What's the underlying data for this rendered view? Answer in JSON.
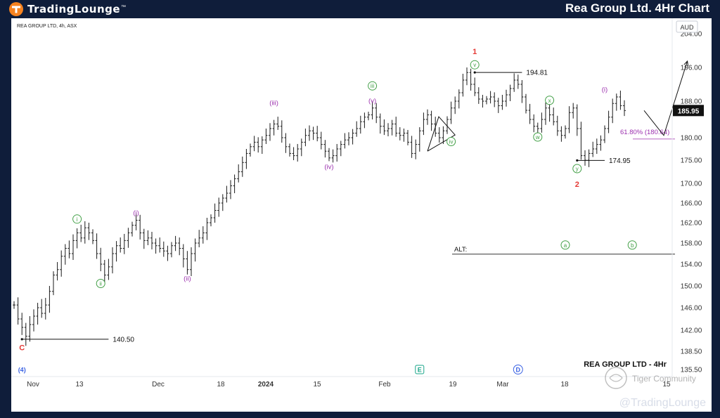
{
  "header": {
    "logo_text": "TradingLounge",
    "title": "Rea Group Ltd. 4Hr Chart"
  },
  "footer": {
    "brand": "@TradingLounge"
  },
  "watermarks": {
    "tiger": "Tiger Community"
  },
  "colors": {
    "background": "#0f1d3a",
    "panel": "#ffffff",
    "candles": "#1a1a1a",
    "minor_label": "#9b2fae",
    "minute_label": "#43a047",
    "primary_label": "#e53935",
    "intermediate_label": "#3a62e3",
    "logo_accent": "#f5821f"
  },
  "chart_data": {
    "type": "line",
    "symbol_label": "REA GROUP LTD, 4h, ASX",
    "currency": "AUD",
    "last_price": "185.95",
    "chart_title": "REA GROUP LTD - 4Hr",
    "y_ticks": [
      "204.00",
      "196.00",
      "188.00",
      "180.00",
      "175.00",
      "170.00",
      "166.00",
      "162.00",
      "158.00",
      "154.00",
      "150.00",
      "146.00",
      "142.00",
      "138.50",
      "135.50"
    ],
    "x_ticks": [
      "Nov",
      "13",
      "Dec",
      "18",
      "2024",
      "15",
      "Feb",
      "19",
      "Mar",
      "18",
      "15"
    ],
    "series": [
      {
        "values": [
          146.5,
          144.0,
          142.5,
          141.0,
          143.0,
          144.5,
          146.0,
          145.0,
          146.5,
          149.0,
          152.0,
          153.0,
          155.5,
          157.0,
          156.0,
          158.5,
          160.0,
          159.0,
          161.0,
          160.0,
          158.5,
          156.0,
          154.0,
          152.0,
          153.5,
          156.0,
          157.5,
          157.0,
          158.5,
          160.0,
          161.5,
          162.5,
          160.0,
          158.5,
          159.0,
          158.0,
          157.5,
          157.0,
          156.5,
          156.0,
          157.5,
          158.0,
          157.0,
          155.0,
          153.0,
          156.0,
          158.0,
          159.0,
          160.0,
          162.0,
          163.0,
          164.5,
          166.0,
          167.0,
          168.0,
          169.5,
          171.0,
          172.5,
          174.5,
          176.5,
          178.0,
          179.0,
          178.0,
          179.5,
          180.5,
          182.0,
          183.0,
          182.5,
          180.0,
          178.0,
          176.5,
          176.0,
          177.5,
          179.0,
          180.5,
          181.5,
          181.0,
          180.0,
          178.5,
          177.0,
          175.5,
          176.0,
          177.5,
          178.5,
          179.5,
          180.0,
          181.0,
          182.0,
          183.5,
          184.5,
          185.0,
          186.5,
          184.5,
          182.5,
          181.5,
          182.0,
          183.0,
          181.0,
          180.5,
          181.0,
          179.0,
          176.5,
          178.5,
          181.5,
          184.0,
          185.0,
          183.0,
          181.0,
          180.0,
          181.5,
          184.0,
          186.5,
          188.0,
          190.0,
          193.0,
          194.8,
          192.0,
          190.0,
          188.5,
          188.0,
          188.5,
          189.0,
          188.0,
          187.0,
          188.0,
          189.5,
          191.0,
          193.0,
          192.0,
          189.0,
          186.0,
          184.0,
          182.5,
          182.0,
          184.0,
          186.5,
          185.0,
          183.5,
          181.5,
          180.5,
          182.0,
          185.5,
          186.5,
          182.0,
          176.0,
          175.0,
          176.5,
          177.5,
          178.5,
          179.5,
          182.0,
          184.5,
          187.5,
          189.0,
          187.0,
          185.95
        ]
      }
    ],
    "annotations": {
      "levels": [
        {
          "label": "194.81",
          "value": 194.81
        },
        {
          "label": "174.95",
          "value": 174.95
        },
        {
          "label": "140.50",
          "value": 140.5
        }
      ],
      "fib": {
        "label": "61.80% (180.64)",
        "value": 180.64
      },
      "alt_label": "ALT:",
      "alt_level": 155.9,
      "projection": [
        {
          "i": 160,
          "v": 185.95
        },
        {
          "i": 165,
          "v": 180.5
        },
        {
          "i": 171,
          "v": 197.5
        }
      ],
      "triangle": {
        "i1": 105,
        "i2": 112
      },
      "waves": [
        {
          "text": "C",
          "i": 2,
          "v": 140.5,
          "pos": "below",
          "color": "#e53935"
        },
        {
          "text": "i",
          "i": 16,
          "v": 161.2,
          "pos": "above",
          "color": "#43a047",
          "circle": true
        },
        {
          "text": "ii",
          "i": 22,
          "v": 152.0,
          "pos": "below",
          "color": "#43a047",
          "circle": true
        },
        {
          "text": "(i)",
          "i": 31,
          "v": 162.5,
          "pos": "above",
          "color": "#9b2fae"
        },
        {
          "text": "(ii)",
          "i": 44,
          "v": 153.0,
          "pos": "below",
          "color": "#9b2fae"
        },
        {
          "text": "(iii)",
          "i": 66,
          "v": 186.0,
          "pos": "above",
          "color": "#9b2fae"
        },
        {
          "text": "(iv)",
          "i": 80,
          "v": 175.5,
          "pos": "below",
          "color": "#9b2fae"
        },
        {
          "text": "(v)",
          "i": 91,
          "v": 186.5,
          "pos": "above",
          "color": "#9b2fae"
        },
        {
          "text": "iii",
          "i": 91,
          "v": 189.8,
          "pos": "above",
          "color": "#43a047",
          "circle": true
        },
        {
          "text": "iv",
          "i": 111,
          "v": 181.0,
          "pos": "below",
          "color": "#43a047",
          "circle": true
        },
        {
          "text": "v",
          "i": 117,
          "v": 194.8,
          "pos": "above",
          "color": "#43a047",
          "circle": true
        },
        {
          "text": "1",
          "i": 117,
          "v": 197.9,
          "pos": "above",
          "color": "#e53935"
        },
        {
          "text": "w",
          "i": 133,
          "v": 182.0,
          "pos": "below",
          "color": "#43a047",
          "circle": true
        },
        {
          "text": "x",
          "i": 136,
          "v": 186.5,
          "pos": "above",
          "color": "#43a047",
          "circle": true
        },
        {
          "text": "y",
          "i": 143,
          "v": 175.0,
          "pos": "below",
          "color": "#43a047",
          "circle": true
        },
        {
          "text": "2",
          "i": 143,
          "v": 171.6,
          "pos": "below",
          "color": "#e53935"
        },
        {
          "text": "(i)",
          "i": 150,
          "v": 189.0,
          "pos": "above",
          "color": "#9b2fae"
        }
      ],
      "alt_waves": [
        {
          "text": "a",
          "i": 140,
          "color": "#43a047"
        },
        {
          "text": "b",
          "i": 157,
          "color": "#43a047"
        }
      ],
      "axis_markers": [
        {
          "text": "(4)",
          "i": 2,
          "color": "#3a62e3",
          "shape": "none"
        },
        {
          "text": "E",
          "i": 103,
          "color": "#18a689",
          "shape": "square"
        },
        {
          "text": "D",
          "i": 128,
          "color": "#3a62e3",
          "shape": "circle"
        }
      ]
    }
  }
}
